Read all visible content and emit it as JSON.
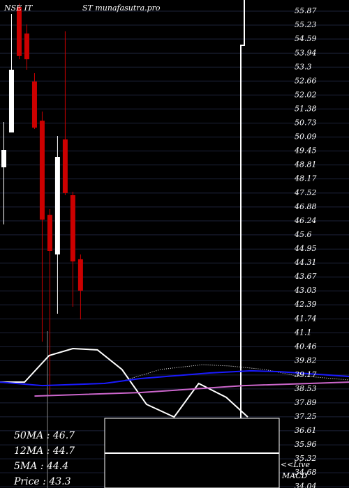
{
  "chart_data": {
    "type": "candlestick",
    "title": "NSE IT",
    "subtitle": "ST munafasutra.pro",
    "xlim": [
      -0.5,
      45
    ],
    "ylim": [
      33.98,
      56.38
    ],
    "yticks": [
      55.87,
      55.23,
      54.59,
      53.94,
      53.3,
      52.66,
      52.02,
      51.38,
      50.73,
      50.09,
      49.45,
      48.81,
      48.17,
      47.52,
      46.88,
      46.24,
      45.6,
      44.95,
      44.31,
      43.67,
      43.03,
      42.39,
      41.74,
      41.1,
      40.46,
      39.82,
      39.17,
      38.53,
      37.89,
      37.25,
      36.61,
      35.96,
      35.32,
      34.68,
      34.04
    ],
    "grid": true,
    "up_color": "#ffffff",
    "down_color": "#cc0000",
    "candles": {
      "x": [
        0,
        1,
        2,
        3,
        4,
        5,
        6,
        7,
        8,
        9,
        10
      ],
      "open": [
        48.7,
        50.3,
        56.06,
        54.84,
        52.64,
        50.84,
        46.52,
        44.7,
        49.98,
        47.42,
        44.48
      ],
      "high": [
        50.78,
        55.74,
        56.22,
        55.26,
        53.02,
        51.26,
        46.78,
        50.14,
        54.94,
        47.58,
        44.7
      ],
      "low": [
        46.08,
        50.3,
        53.66,
        53.18,
        50.46,
        40.7,
        38.3,
        41.98,
        47.42,
        42.3,
        41.72
      ],
      "close": [
        49.5,
        53.18,
        53.82,
        53.66,
        50.52,
        46.3,
        44.86,
        49.18,
        47.52,
        44.38,
        43.04
      ]
    },
    "series": [
      {
        "color": "#ffffff",
        "style": "solid",
        "x": [
          -0.5,
          2.7,
          5.9,
          9.0,
          12.2,
          15.4,
          18.6,
          22.2,
          25.4,
          29.0,
          31.8
        ],
        "values": [
          38.84,
          38.84,
          40.06,
          40.38,
          40.32,
          39.42,
          37.82,
          37.24,
          38.78,
          38.14,
          37.24
        ]
      },
      {
        "color": "#ffffff",
        "style": "dotted",
        "x": [
          15.9,
          20.4,
          25.9,
          29.5,
          34.0,
          37.7,
          45
        ],
        "values": [
          38.94,
          39.42,
          39.64,
          39.58,
          39.42,
          39.16,
          38.94
        ]
      },
      {
        "color": "#1a1aff",
        "style": "solid",
        "x": [
          -0.5,
          5,
          13.1,
          17.7,
          26.8,
          32.2,
          35.9,
          45
        ],
        "values": [
          38.84,
          38.68,
          38.78,
          39.0,
          39.26,
          39.36,
          39.32,
          39.1
        ]
      },
      {
        "color": "#cc66cc",
        "style": "solid",
        "x": [
          4.0,
          17.7,
          31.3,
          45
        ],
        "values": [
          38.2,
          38.36,
          38.68,
          38.84
        ]
      }
    ],
    "info": [
      "50MA : 46.7",
      "12MA : 44.7",
      "5MA : 44.4",
      "Price   : 43.3"
    ],
    "live": [
      "<<Live",
      "MACD"
    ]
  }
}
